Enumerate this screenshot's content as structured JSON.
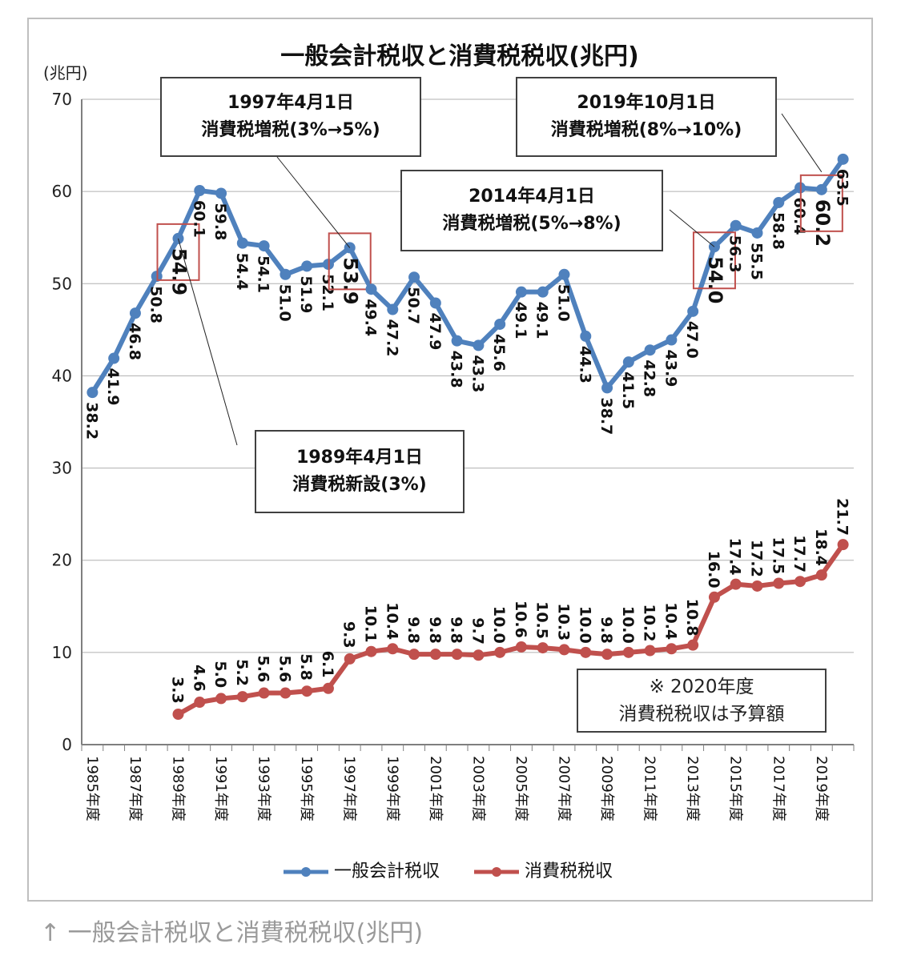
{
  "chart_data": {
    "type": "line",
    "title": "一般会計税収と消費税税収(兆円)",
    "ylabel": "(兆円)",
    "ylim": [
      0,
      70
    ],
    "yticks": [
      0,
      10,
      20,
      30,
      40,
      50,
      60,
      70
    ],
    "grid": true,
    "legend_position": "bottom",
    "x": [
      1985,
      1986,
      1987,
      1988,
      1989,
      1990,
      1991,
      1992,
      1993,
      1994,
      1995,
      1996,
      1997,
      1998,
      1999,
      2000,
      2001,
      2002,
      2003,
      2004,
      2005,
      2006,
      2007,
      2008,
      2009,
      2010,
      2011,
      2012,
      2013,
      2014,
      2015,
      2016,
      2017,
      2018,
      2019,
      2020
    ],
    "xtick_labels": [
      "1985年度",
      "1987年度",
      "1989年度",
      "1991年度",
      "1993年度",
      "1995年度",
      "1997年度",
      "1999年度",
      "2001年度",
      "2003年度",
      "2005年度",
      "2007年度",
      "2009年度",
      "2011年度",
      "2013年度",
      "2015年度",
      "2017年度",
      "2019年度"
    ],
    "series": [
      {
        "name": "一般会計税収",
        "color": "#4f81bd",
        "values": [
          38.2,
          41.9,
          46.8,
          50.8,
          54.9,
          60.1,
          59.8,
          54.4,
          54.1,
          51.0,
          51.9,
          52.1,
          53.9,
          49.4,
          47.2,
          50.7,
          47.9,
          43.8,
          43.3,
          45.6,
          49.1,
          49.1,
          51.0,
          44.3,
          38.7,
          41.5,
          42.8,
          43.9,
          47.0,
          54.0,
          56.3,
          55.5,
          58.8,
          60.4,
          60.2,
          63.5
        ],
        "labels": [
          "38.2",
          "41.9",
          "46.8",
          "50.8",
          "54.9",
          "60.1",
          "59.8",
          "54.4",
          "54.1",
          "51.0",
          "51.9",
          "52.1",
          "53.9",
          "49.4",
          "47.2",
          "50.7",
          "47.9",
          "43.8",
          "43.3",
          "45.6",
          "49.1",
          "49.1",
          "51.0",
          "44.3",
          "38.7",
          "41.5",
          "42.8",
          "43.9",
          "47.0",
          "54.0",
          "56.3",
          "55.5",
          "58.8",
          "60.4",
          "60.2",
          "63.5"
        ]
      },
      {
        "name": "消費税税収",
        "color": "#c0504d",
        "values": [
          null,
          null,
          null,
          null,
          3.3,
          4.6,
          5.0,
          5.2,
          5.6,
          5.6,
          5.8,
          6.1,
          9.3,
          10.1,
          10.4,
          9.8,
          9.8,
          9.8,
          9.7,
          10.0,
          10.6,
          10.5,
          10.3,
          10.0,
          9.8,
          10.0,
          10.2,
          10.4,
          10.8,
          16.0,
          17.4,
          17.2,
          17.5,
          17.7,
          18.4,
          21.7
        ],
        "labels": [
          "",
          "",
          "",
          "",
          "3.3",
          "4.6",
          "5.0",
          "5.2",
          "5.6",
          "5.6",
          "5.8",
          "6.1",
          "9.3",
          "10.1",
          "10.4",
          "9.8",
          "9.8",
          "9.8",
          "9.7",
          "10.0",
          "10.6",
          "10.5",
          "10.3",
          "10.0",
          "9.8",
          "10.0",
          "10.2",
          "10.4",
          "10.8",
          "16.0",
          "17.4",
          "17.2",
          "17.5",
          "17.7",
          "18.4",
          "21.7"
        ]
      }
    ],
    "highlighted_points": [
      {
        "series": 0,
        "year": 1989,
        "label": "54.9"
      },
      {
        "series": 0,
        "year": 1997,
        "label": "53.9"
      },
      {
        "series": 0,
        "year": 2014,
        "label": "54.0"
      },
      {
        "series": 0,
        "year": 2019,
        "label": "60.2"
      }
    ],
    "annotations": [
      {
        "line1": "1997年4月1日",
        "line2": "消費税増税(3%→5%)"
      },
      {
        "line1": "2019年10月1日",
        "line2": "消費税増税(8%→10%)"
      },
      {
        "line1": "2014年4月1日",
        "line2": "消費税増税(5%→8%)"
      },
      {
        "line1": "1989年4月1日",
        "line2": "消費税新設(3%)"
      }
    ],
    "note": {
      "line1": "※ 2020年度",
      "line2": "消費税税収は予算額"
    }
  },
  "caption": "↑ 一般会計税収と消費税税収(兆円)"
}
